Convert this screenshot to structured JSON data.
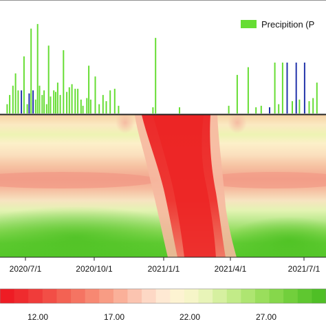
{
  "chart_data": [
    {
      "type": "bar",
      "legend": {
        "label": "Precipition (P",
        "color": "#66dd33",
        "position": "top-right"
      },
      "alt_bar_color": "#2233aa",
      "x": [
        "2020-05-01",
        "2020-05-05",
        "2020-05-10",
        "2020-05-14",
        "2020-05-18",
        "2020-05-23",
        "2020-05-27",
        "2020-06-01",
        "2020-06-04",
        "2020-06-07",
        "2020-06-10",
        "2020-06-14",
        "2020-06-17",
        "2020-06-20",
        "2020-06-24",
        "2020-06-27",
        "2020-07-01",
        "2020-07-04",
        "2020-07-07",
        "2020-07-12",
        "2020-07-15",
        "2020-07-18",
        "2020-07-22",
        "2020-07-27",
        "2020-08-01",
        "2020-08-05",
        "2020-08-09",
        "2020-08-14",
        "2020-08-18",
        "2020-08-23",
        "2020-08-26",
        "2020-09-01",
        "2020-09-04",
        "2020-09-07",
        "2020-09-14",
        "2020-09-20",
        "2020-09-26",
        "2020-10-01",
        "2020-10-07",
        "2020-10-14",
        "2020-10-20",
        "2020-12-12",
        "2020-12-16",
        "2021-01-22",
        "2021-04-08",
        "2021-04-21",
        "2021-05-08",
        "2021-05-20",
        "2021-05-28",
        "2021-06-10",
        "2021-06-18",
        "2021-06-24",
        "2021-06-30",
        "2021-07-07",
        "2021-07-15",
        "2021-07-21",
        "2021-07-26",
        "2021-08-03",
        "2021-08-10",
        "2021-08-16",
        "2021-08-22"
      ],
      "values": [
        0.6,
        1.2,
        1.8,
        2.6,
        1.5,
        1.5,
        3.7,
        0.6,
        1.3,
        5.5,
        1.5,
        0.9,
        5.8,
        1.8,
        1.2,
        1.5,
        0.6,
        4.4,
        1.1,
        1.5,
        1.4,
        2.0,
        1.2,
        4.1,
        1.4,
        1.7,
        1.9,
        1.6,
        1.6,
        0.9,
        0.5,
        1.0,
        3.1,
        0.9,
        2.4,
        0.6,
        1.2,
        0.8,
        1.5,
        1.6,
        0.5,
        0.4,
        4.9,
        0.4,
        0.5,
        2.5,
        3.0,
        0.4,
        0.5,
        0.4,
        3.3,
        0.6,
        3.3,
        3.3,
        0.8,
        3.3,
        0.9,
        3.3,
        0.8,
        1.0,
        2.0
      ],
      "alt_colored": [
        false,
        false,
        false,
        false,
        false,
        true,
        false,
        false,
        true,
        false,
        true,
        false,
        false,
        false,
        false,
        false,
        false,
        false,
        false,
        false,
        false,
        false,
        false,
        false,
        false,
        false,
        false,
        false,
        false,
        false,
        false,
        false,
        false,
        false,
        false,
        false,
        false,
        false,
        false,
        false,
        false,
        false,
        false,
        false,
        false,
        false,
        false,
        false,
        false,
        true,
        false,
        false,
        false,
        true,
        false,
        true,
        false,
        true,
        false,
        false,
        false
      ],
      "ylim": [
        0,
        7
      ]
    },
    {
      "type": "heatmap",
      "x_ticks": [
        "2020/7/1",
        "2020/10/1",
        "2021/1/1",
        "2021/4/1",
        "2021/7/1"
      ],
      "x_tick_dates": [
        "2020-07-01",
        "2020-10-01",
        "2021-01-01",
        "2021-04-01",
        "2021-07-01"
      ],
      "xlim": [
        "2020-04-20",
        "2021-09-05"
      ],
      "colorbar": {
        "min": 8.0,
        "max": 32.0,
        "tick_labels": [
          "12.00",
          "17.00",
          "22.00",
          "27.00"
        ],
        "tick_values": [
          12,
          17,
          22,
          27
        ],
        "colors": [
          "#ee1c24",
          "#ef2b2e",
          "#f03c3a",
          "#f24e46",
          "#f36253",
          "#f57462",
          "#f78872",
          "#f89c84",
          "#fab099",
          "#fbc4b0",
          "#fdd8c5",
          "#fee9d3",
          "#fdf3d2",
          "#f6f5c8",
          "#e8f4b8",
          "#d6f0a0",
          "#c2eb88",
          "#aee571",
          "#9ade5c",
          "#86d74b",
          "#72cf3c",
          "#5fc730",
          "#4fbf26"
        ]
      }
    }
  ]
}
